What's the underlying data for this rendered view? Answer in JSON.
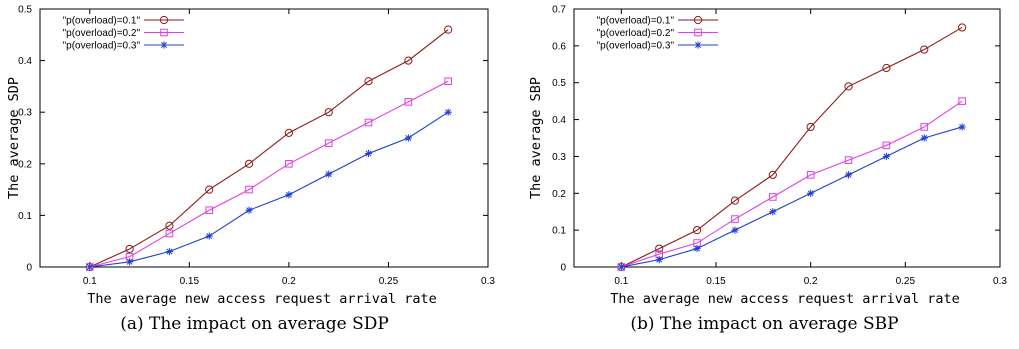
{
  "chart_data": [
    {
      "type": "line",
      "caption": "(a) The impact on average SDP",
      "xlabel": "The average new access request arrival rate",
      "ylabel": "The average SDP",
      "xlim": [
        0.075,
        0.3
      ],
      "ylim": [
        0,
        0.5
      ],
      "x_ticks": [
        "0.1",
        "0.15",
        "0.2",
        "0.25",
        "0.3"
      ],
      "x_tick_values": [
        0.1,
        0.15,
        0.2,
        0.25,
        0.3
      ],
      "y_ticks": [
        "0",
        "0.1",
        "0.2",
        "0.3",
        "0.4",
        "0.5"
      ],
      "y_tick_values": [
        0,
        0.1,
        0.2,
        0.3,
        0.4,
        0.5
      ],
      "legend_position": "top-left",
      "x": [
        0.1,
        0.12,
        0.14,
        0.16,
        0.18,
        0.2,
        0.22,
        0.24,
        0.26,
        0.28
      ],
      "series": [
        {
          "name": "\"p(overload)=0.1\"",
          "marker": "circle",
          "color": "#8b1a1a",
          "values": [
            0,
            0.035,
            0.08,
            0.15,
            0.2,
            0.26,
            0.3,
            0.36,
            0.4,
            0.46
          ]
        },
        {
          "name": "\"p(overload)=0.2\"",
          "marker": "square",
          "color": "#e040e0",
          "values": [
            0,
            0.02,
            0.065,
            0.11,
            0.15,
            0.2,
            0.24,
            0.28,
            0.32,
            0.36
          ]
        },
        {
          "name": "\"p(overload)=0.3\"",
          "marker": "star",
          "color": "#1f3fd0",
          "values": [
            0,
            0.01,
            0.03,
            0.06,
            0.11,
            0.14,
            0.18,
            0.22,
            0.25,
            0.3
          ]
        }
      ]
    },
    {
      "type": "line",
      "caption": "(b) The impact on average SBP",
      "xlabel": "The average new access request arrival rate",
      "ylabel": "The average SBP",
      "xlim": [
        0.075,
        0.3
      ],
      "ylim": [
        0,
        0.7
      ],
      "x_ticks": [
        "0.1",
        "0.15",
        "0.2",
        "0.25",
        "0.3"
      ],
      "x_tick_values": [
        0.1,
        0.15,
        0.2,
        0.25,
        0.3
      ],
      "y_ticks": [
        "0",
        "0.1",
        "0.2",
        "0.3",
        "0.4",
        "0.5",
        "0.6",
        "0.7"
      ],
      "y_tick_values": [
        0,
        0.1,
        0.2,
        0.3,
        0.4,
        0.5,
        0.6,
        0.7
      ],
      "legend_position": "top-left",
      "x": [
        0.1,
        0.12,
        0.14,
        0.16,
        0.18,
        0.2,
        0.22,
        0.24,
        0.26,
        0.28
      ],
      "series": [
        {
          "name": "\"p(overload)=0.1\"",
          "marker": "circle",
          "color": "#8b1a1a",
          "values": [
            0,
            0.05,
            0.1,
            0.18,
            0.25,
            0.38,
            0.49,
            0.54,
            0.59,
            0.65
          ]
        },
        {
          "name": "\"p(overload)=0.2\"",
          "marker": "square",
          "color": "#e040e0",
          "values": [
            0,
            0.035,
            0.065,
            0.13,
            0.19,
            0.25,
            0.29,
            0.33,
            0.38,
            0.45
          ]
        },
        {
          "name": "\"p(overload)=0.3\"",
          "marker": "star",
          "color": "#1f3fd0",
          "values": [
            0,
            0.02,
            0.05,
            0.1,
            0.15,
            0.2,
            0.25,
            0.3,
            0.35,
            0.38
          ]
        }
      ]
    }
  ]
}
